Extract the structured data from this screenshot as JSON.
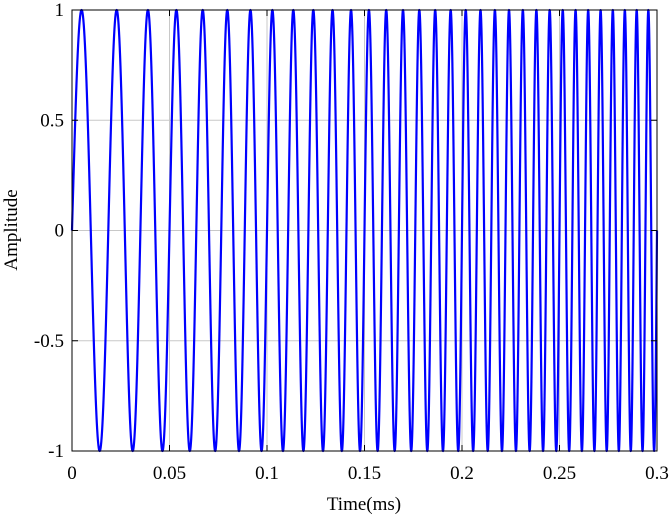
{
  "chart_data": {
    "type": "line",
    "title": "",
    "xlabel": "Time(ms)",
    "ylabel": "Amplitude",
    "xlim": [
      0,
      0.3
    ],
    "ylim": [
      -1,
      1
    ],
    "grid": true,
    "xticks": [
      0,
      0.05,
      0.1,
      0.15,
      0.2,
      0.25,
      0.3
    ],
    "xtick_labels": [
      "0",
      "0.05",
      "0.1",
      "0.15",
      "0.2",
      "0.25",
      "0.3"
    ],
    "yticks": [
      1,
      0.5,
      0,
      -0.5,
      -1
    ],
    "ytick_labels": [
      "1",
      "0.5",
      "0",
      "-0.5",
      "-1"
    ],
    "series": [
      {
        "color": "#0000ff",
        "signal": "linear chirp, amplitude 1, starts at 0 rising",
        "x": [
          0,
          0.3
        ],
        "f0_khz": 50,
        "f1_khz": 170,
        "sample_step_ms": 5e-05
      }
    ]
  }
}
